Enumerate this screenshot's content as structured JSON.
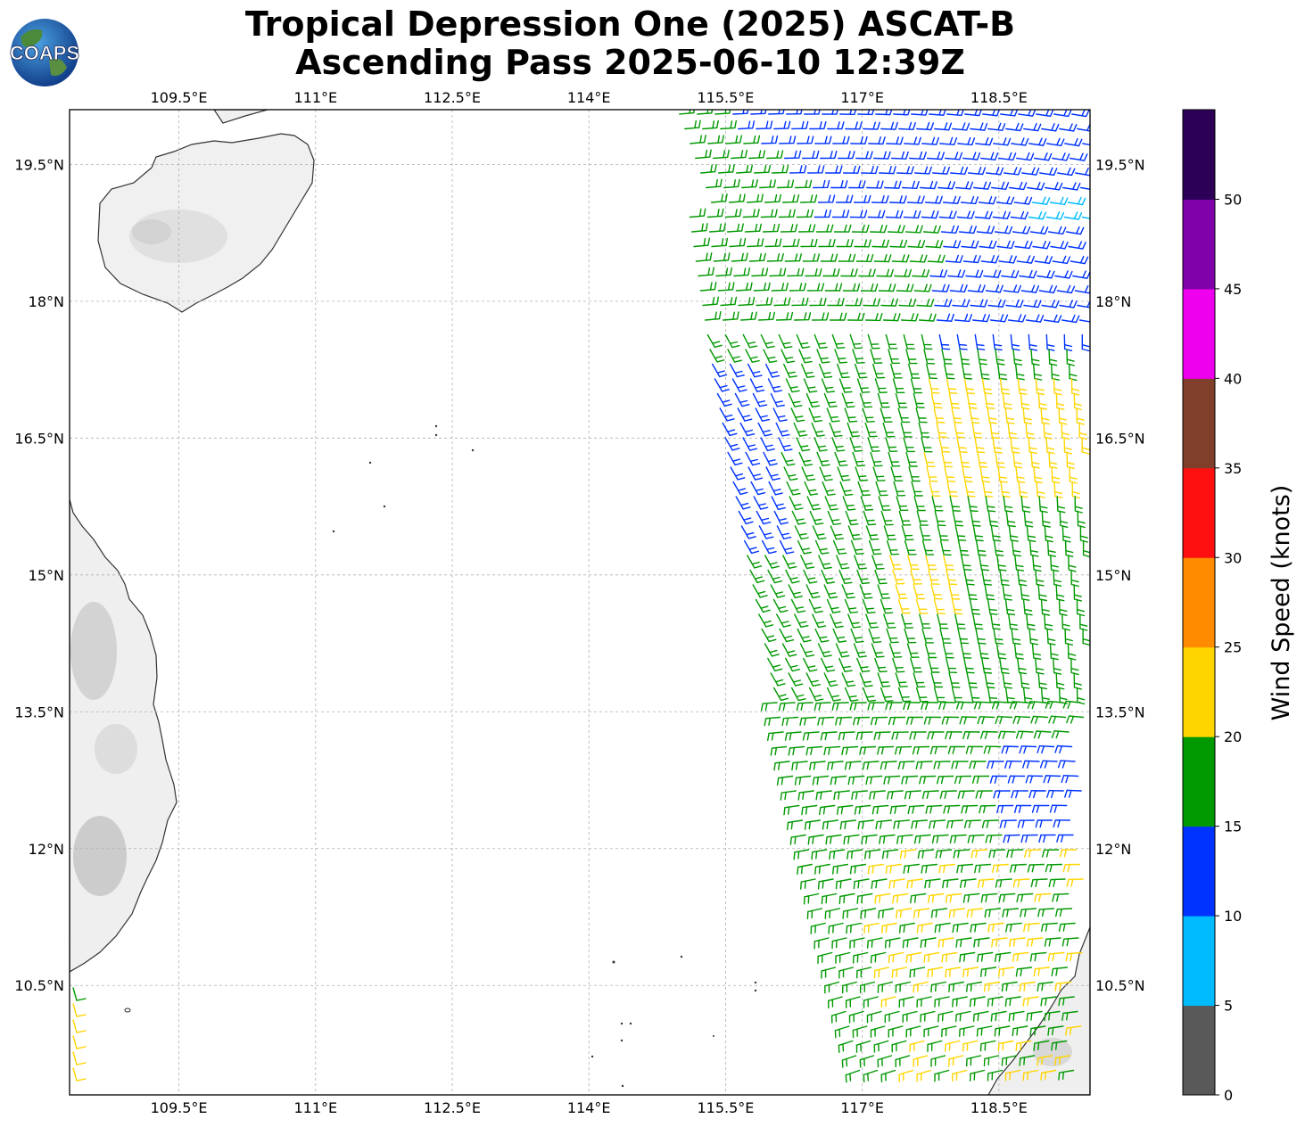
{
  "title": {
    "line1": "Tropical Depression One (2025) ASCAT-B",
    "line2": "Ascending Pass 2025-06-10 12:39Z"
  },
  "logo": {
    "text": "COAPS",
    "icon": "globe-logo-icon"
  },
  "map": {
    "lon_ticks": [
      "109.5°E",
      "111°E",
      "112.5°E",
      "114°E",
      "115.5°E",
      "117°E",
      "118.5°E"
    ],
    "lat_ticks": [
      "19.5°N",
      "18°N",
      "16.5°N",
      "15°N",
      "13.5°N",
      "12°N",
      "10.5°N"
    ],
    "lon_values": [
      109.5,
      111,
      112.5,
      114,
      115.5,
      117,
      118.5
    ],
    "lat_values": [
      19.5,
      18,
      16.5,
      15,
      13.5,
      12,
      10.5
    ],
    "lon_range": [
      108.3,
      119.5
    ],
    "lat_range": [
      9.3,
      20.1
    ],
    "gridlines": true,
    "wind_barbs": {
      "swath": "right side of map, approximately 115.4°E–119.5°E",
      "dominant_colors": [
        "#0033ff",
        "#009900",
        "#ffd500",
        "#00bbff"
      ]
    }
  },
  "colorbar": {
    "label": "Wind Speed (knots)",
    "ticks": [
      "0",
      "5",
      "10",
      "15",
      "20",
      "25",
      "30",
      "35",
      "40",
      "45",
      "50"
    ],
    "colors": [
      "#595959",
      "#00bbff",
      "#0033ff",
      "#009900",
      "#ffd500",
      "#ff8c00",
      "#ff1010",
      "#7f3f2a",
      "#ee00ee",
      "#8000aa",
      "#2d0057"
    ]
  }
}
